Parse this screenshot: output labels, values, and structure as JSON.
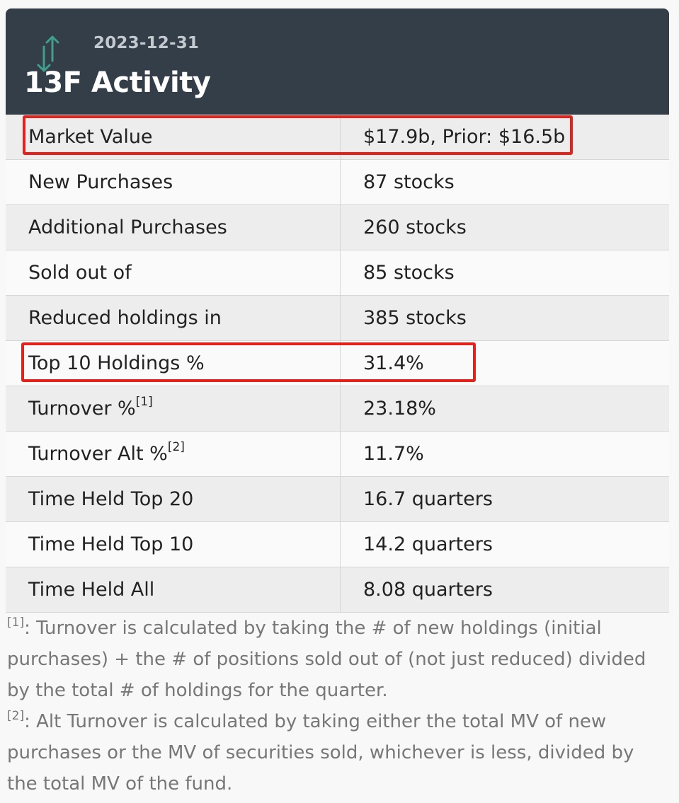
{
  "header": {
    "date": "2023-12-31",
    "title": "13F Activity",
    "icon": "up-down-arrows-icon",
    "icon_color": "#3f9e8c"
  },
  "rows": [
    {
      "label": "Market Value",
      "sup": "",
      "value": "$17.9b, Prior: $16.5b",
      "highlighted": true
    },
    {
      "label": "New Purchases",
      "sup": "",
      "value": "87 stocks",
      "highlighted": false
    },
    {
      "label": "Additional Purchases",
      "sup": "",
      "value": "260 stocks",
      "highlighted": false
    },
    {
      "label": "Sold out of",
      "sup": "",
      "value": "85 stocks",
      "highlighted": false
    },
    {
      "label": "Reduced holdings in",
      "sup": "",
      "value": "385 stocks",
      "highlighted": false
    },
    {
      "label": "Top 10 Holdings %",
      "sup": "",
      "value": "31.4%",
      "highlighted": true
    },
    {
      "label": "Turnover %",
      "sup": "[1]",
      "value": "23.18%",
      "highlighted": false
    },
    {
      "label": "Turnover Alt %",
      "sup": "[2]",
      "value": "11.7%",
      "highlighted": false
    },
    {
      "label": "Time Held Top 20",
      "sup": "",
      "value": "16.7 quarters",
      "highlighted": false
    },
    {
      "label": "Time Held Top 10",
      "sup": "",
      "value": "14.2 quarters",
      "highlighted": false
    },
    {
      "label": "Time Held All",
      "sup": "",
      "value": "8.08 quarters",
      "highlighted": false
    }
  ],
  "footnotes": [
    {
      "mark": "[1]",
      "text": ": Turnover is calculated by taking the # of new holdings (initial purchases) + the # of positions sold out of (not just reduced) divided by the total # of holdings for the quarter."
    },
    {
      "mark": "[2]",
      "text": ": Alt Turnover is calculated by taking either the total MV of new purchases or the MV of securities sold, whichever is less, divided by the total MV of the fund."
    }
  ],
  "highlight_color": "#e4221b"
}
